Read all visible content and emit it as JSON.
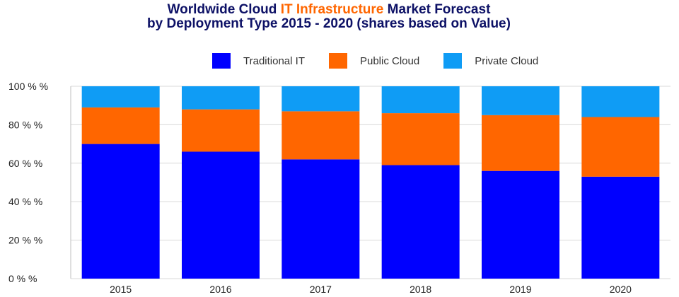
{
  "title": {
    "line1_a": "Worldwide Cloud ",
    "line1_highlight": "IT Infrastructure",
    "line1_b": " Market Forecast",
    "line2": "by Deployment Type  2015 - 2020 (shares based on Value)"
  },
  "colors": {
    "title": "#0d1166",
    "highlight": "#ff6600",
    "traditional": "#0000ff",
    "public": "#ff6600",
    "private": "#0f9cf5",
    "grid": "#d9d9d9"
  },
  "chart_data": {
    "type": "bar",
    "stacked": true,
    "categories": [
      "2015",
      "2016",
      "2017",
      "2018",
      "2019",
      "2020"
    ],
    "series": [
      {
        "name": "Traditional IT",
        "values": [
          70,
          66,
          62,
          59,
          56,
          53
        ]
      },
      {
        "name": "Public Cloud",
        "values": [
          19,
          22,
          25,
          27,
          29,
          31
        ]
      },
      {
        "name": "Private Cloud",
        "values": [
          11,
          12,
          13,
          14,
          15,
          16
        ]
      }
    ],
    "ylim": [
      0,
      100
    ],
    "yticks": [
      "0 % %",
      "20 % %",
      "40 % %",
      "60 % %",
      "80 % %",
      "100 % %"
    ],
    "legend_position": "top",
    "grid": true
  }
}
